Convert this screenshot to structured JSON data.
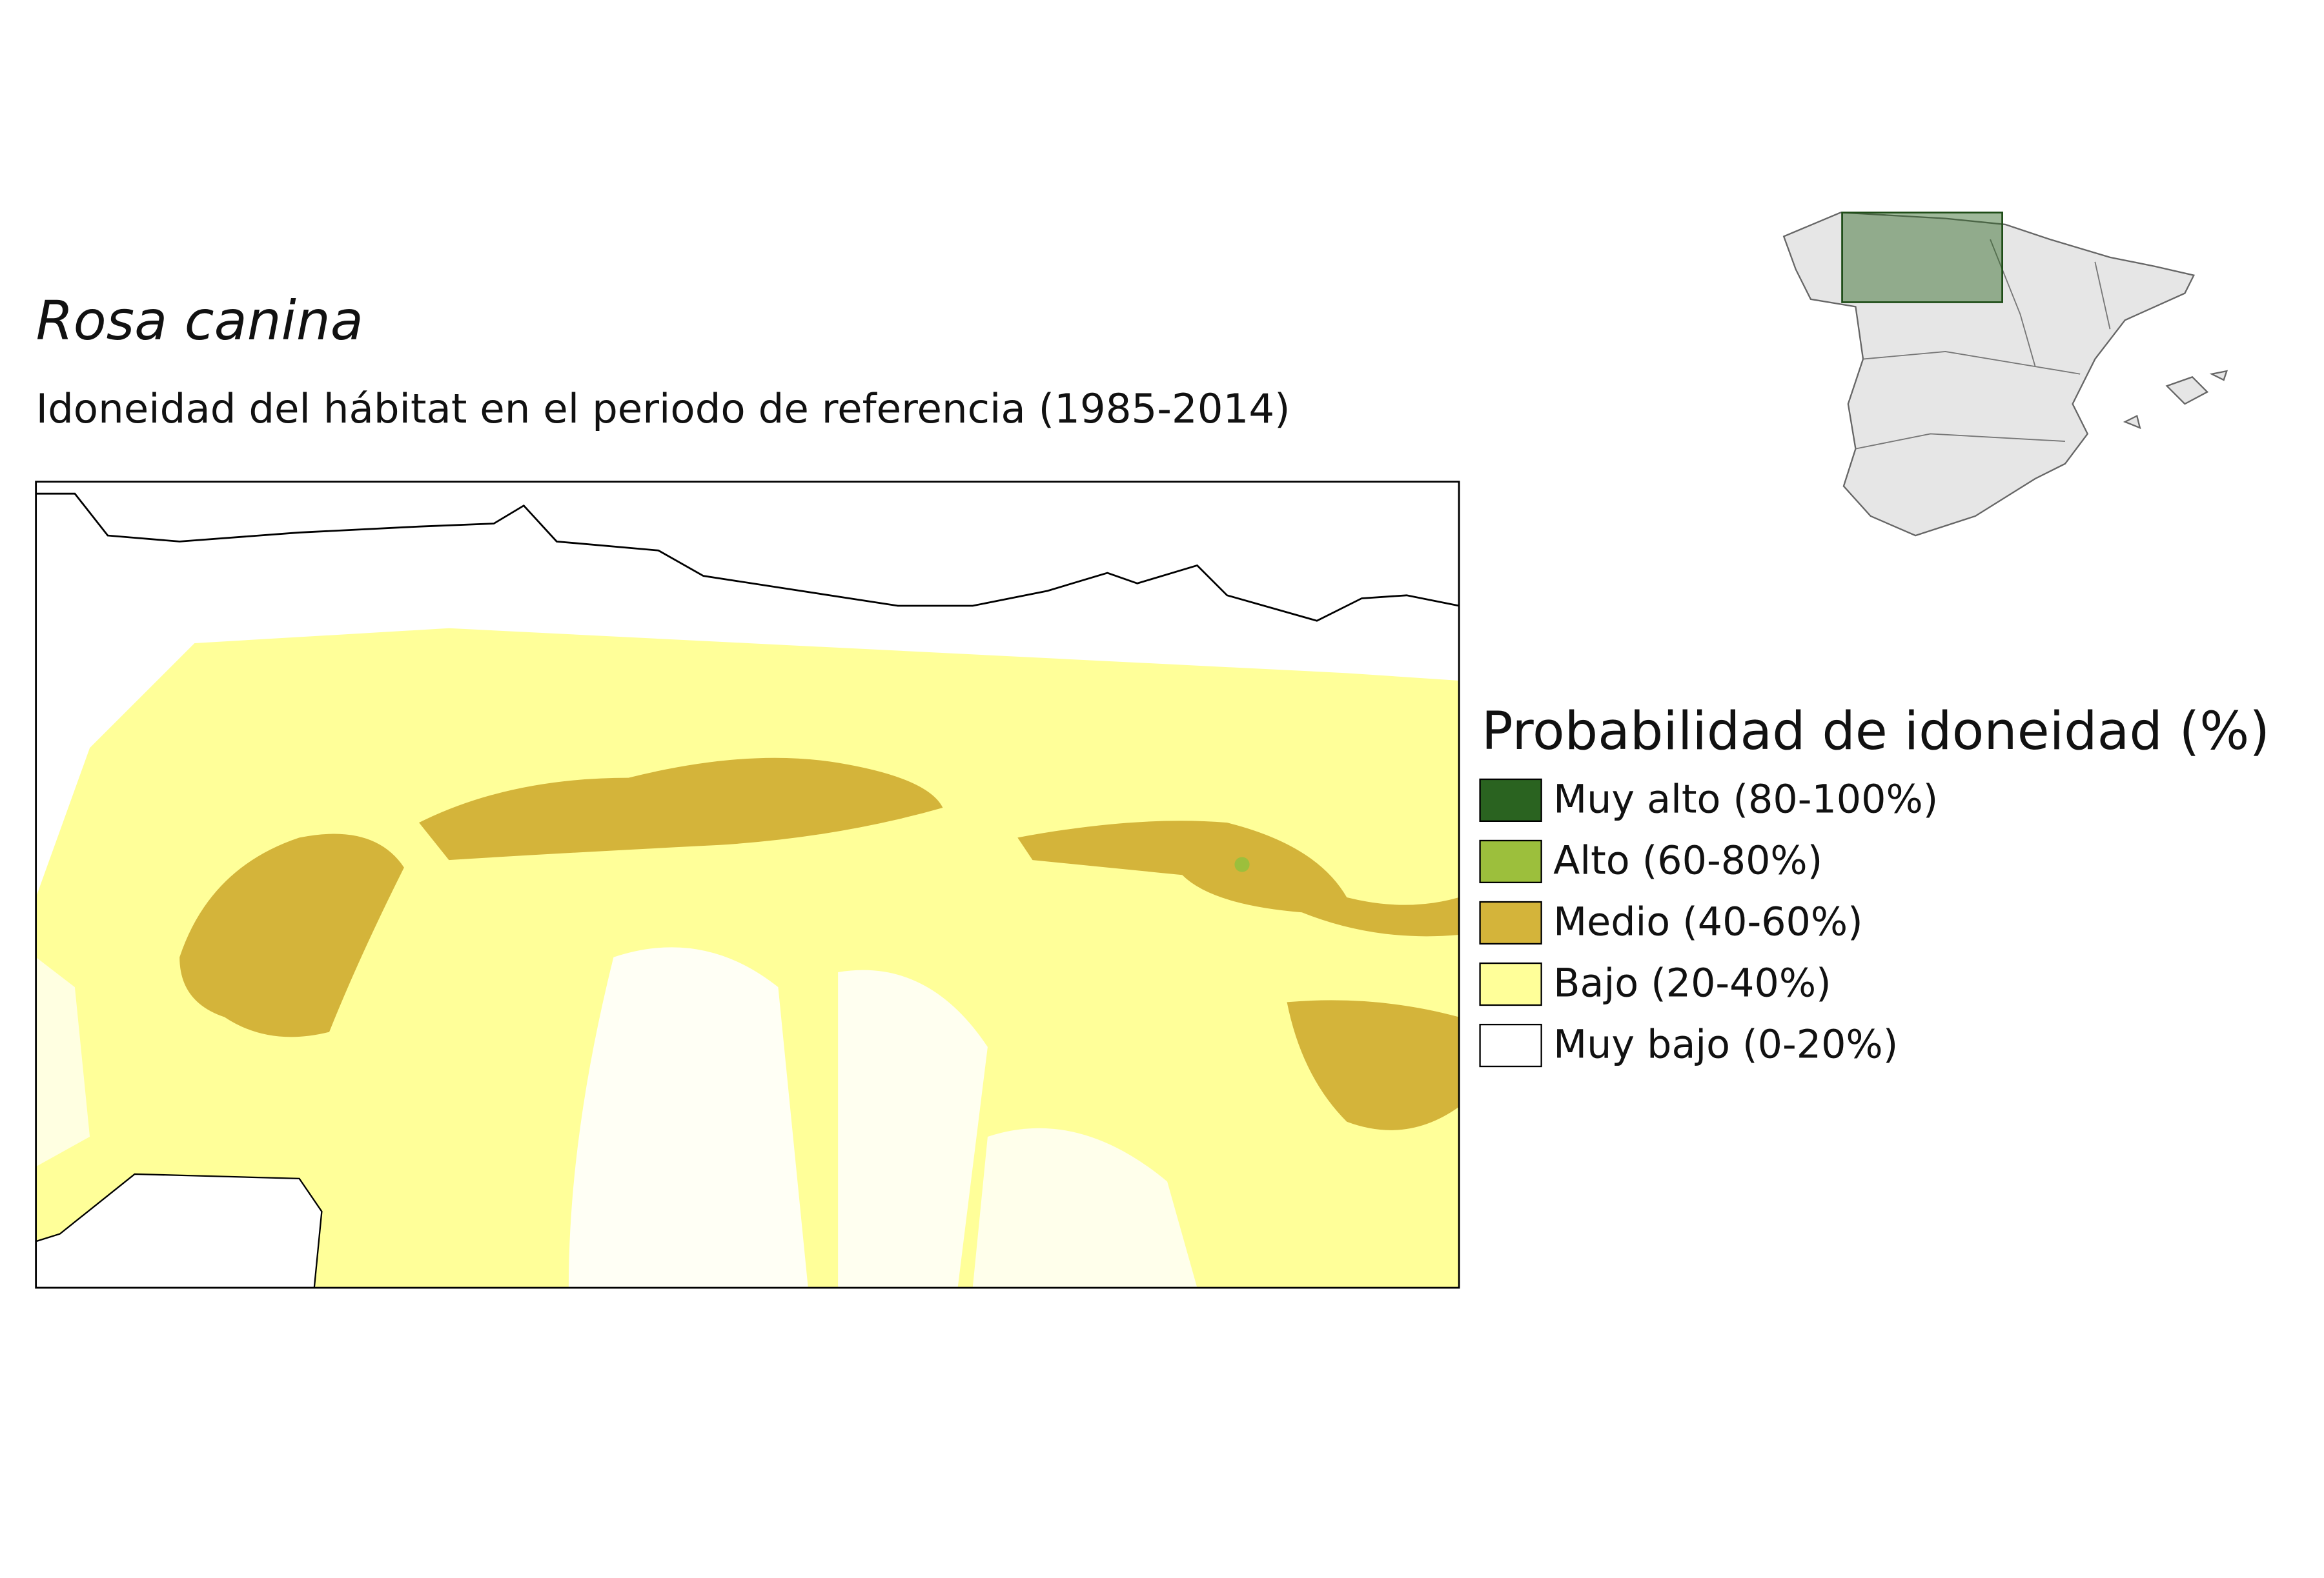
{
  "title": "Rosa canina",
  "subtitle": "Idoneidad del hábitat en el periodo de referencia (1985-2014)",
  "legend": {
    "title": "Probabilidad de idoneidad (%)",
    "items": [
      {
        "label": "Muy alto (80-100%)",
        "color": "#2a6320"
      },
      {
        "label": "Alto (60-80%)",
        "color": "#9cbf3c"
      },
      {
        "label": "Medio (40-60%)",
        "color": "#d4b43a"
      },
      {
        "label": "Bajo (20-40%)",
        "color": "#ffff99"
      },
      {
        "label": "Muy bajo (0-20%)",
        "color": "#ffffff"
      }
    ]
  }
}
